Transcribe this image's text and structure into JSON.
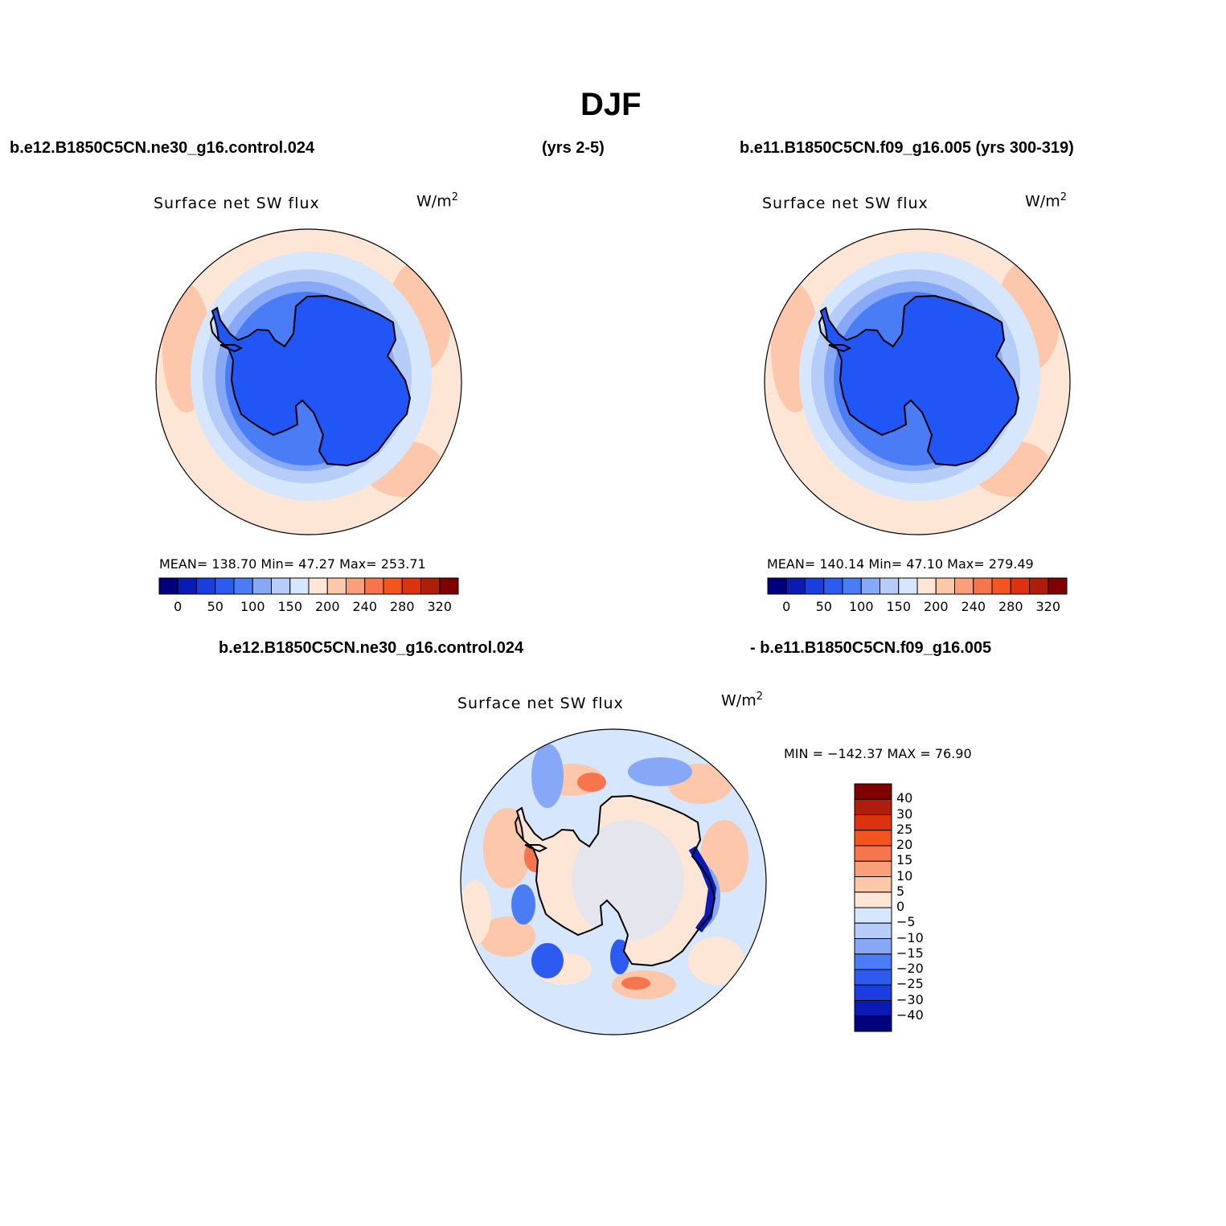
{
  "title": "DJF",
  "header": {
    "case_a": "b.e12.B1850C5CN.ne30_g16.control.024",
    "years_a": "(yrs 2-5)",
    "case_b_years": "b.e11.B1850C5CN.f09_g16.005 (yrs 300-319)",
    "diff_left": "b.e12.B1850C5CN.ne30_g16.control.024",
    "diff_right": "- b.e11.B1850C5CN.f09_g16.005"
  },
  "panels": [
    {
      "variable": "Surface net SW flux",
      "units": "W/m",
      "units_sup": "2",
      "stats": "MEAN= 138.70   Min=   47.27   Max= 253.71"
    },
    {
      "variable": "Surface net SW flux",
      "units": "W/m",
      "units_sup": "2",
      "stats": "MEAN= 140.14   Min=   47.10   Max= 279.49"
    }
  ],
  "diff_panel": {
    "variable": "Surface net SW flux",
    "units": "W/m",
    "units_sup": "2",
    "stats": "MIN = −142.37 MAX =   76.90"
  },
  "colorbar_abs": {
    "colors": [
      "#00007f",
      "#0a1ab4",
      "#1a3ce0",
      "#2d5af0",
      "#4a7cf5",
      "#86a8f7",
      "#b6cdfa",
      "#d6e6fc",
      "#fde6d6",
      "#fcc7aa",
      "#f9a07a",
      "#f7754d",
      "#f4541e",
      "#dc320f",
      "#b01e0a",
      "#800000"
    ],
    "tick_labels": [
      "0",
      "50",
      "100",
      "150",
      "200",
      "240",
      "280",
      "320"
    ]
  },
  "colorbar_diff": {
    "colors": [
      "#800000",
      "#b01e0a",
      "#dc320f",
      "#f4541e",
      "#f7754d",
      "#f9a07a",
      "#fcc7aa",
      "#fde6d6",
      "#d6e6fc",
      "#b6cdfa",
      "#86a8f7",
      "#4a7cf5",
      "#2d5af0",
      "#1a3ce0",
      "#0a1ab4",
      "#00007f"
    ],
    "tick_labels": [
      "40",
      "30",
      "25",
      "20",
      "15",
      "10",
      "5",
      "0",
      "−5",
      "−10",
      "−15",
      "−20",
      "−25",
      "−30",
      "−40"
    ]
  },
  "map_colors": {
    "ocean_far": "#fde6d6",
    "ocean_warm": "#fcc7aa",
    "ice_edge": "#d6e6fc",
    "ice_mid": "#b6cdfa",
    "ice_inner": "#86a8f7",
    "ice_deep": "#4a7cf5",
    "continent": "#2255f5",
    "coast": "#000000"
  }
}
